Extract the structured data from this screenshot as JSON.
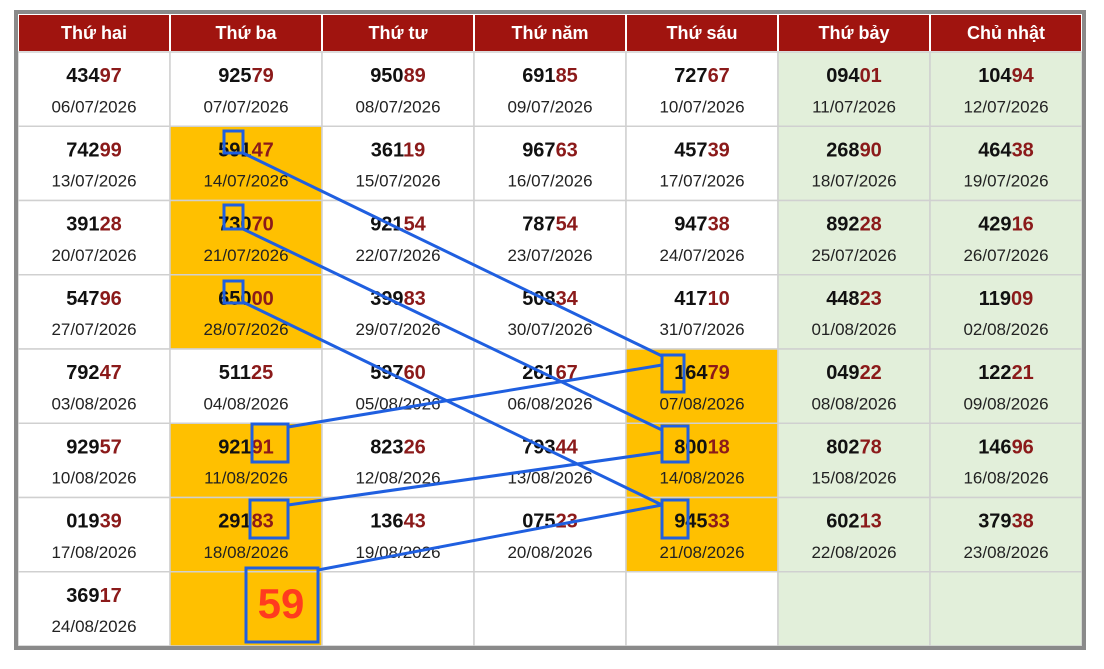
{
  "header": {
    "days": [
      "Thứ hai",
      "Thứ ba",
      "Thứ tư",
      "Thứ năm",
      "Thứ sáu",
      "Thứ bảy",
      "Chủ nhật"
    ]
  },
  "table": {
    "rows": [
      [
        {
          "head": "434",
          "tail": "97",
          "date": "06/07/2026"
        },
        {
          "head": "925",
          "tail": "79",
          "date": "07/07/2026"
        },
        {
          "head": "950",
          "tail": "89",
          "date": "08/07/2026"
        },
        {
          "head": "691",
          "tail": "85",
          "date": "09/07/2026"
        },
        {
          "head": "727",
          "tail": "67",
          "date": "10/07/2026"
        },
        {
          "head": "094",
          "tail": "01",
          "date": "11/07/2026"
        },
        {
          "head": "104",
          "tail": "94",
          "date": "12/07/2026"
        }
      ],
      [
        {
          "head": "742",
          "tail": "99",
          "date": "13/07/2026"
        },
        {
          "head": "591",
          "tail": "47",
          "date": "14/07/2026"
        },
        {
          "head": "361",
          "tail": "19",
          "date": "15/07/2026"
        },
        {
          "head": "967",
          "tail": "63",
          "date": "16/07/2026"
        },
        {
          "head": "457",
          "tail": "39",
          "date": "17/07/2026"
        },
        {
          "head": "268",
          "tail": "90",
          "date": "18/07/2026"
        },
        {
          "head": "464",
          "tail": "38",
          "date": "19/07/2026"
        }
      ],
      [
        {
          "head": "391",
          "tail": "28",
          "date": "20/07/2026"
        },
        {
          "head": "730",
          "tail": "70",
          "date": "21/07/2026"
        },
        {
          "head": "921",
          "tail": "54",
          "date": "22/07/2026"
        },
        {
          "head": "787",
          "tail": "54",
          "date": "23/07/2026"
        },
        {
          "head": "947",
          "tail": "38",
          "date": "24/07/2026"
        },
        {
          "head": "892",
          "tail": "28",
          "date": "25/07/2026"
        },
        {
          "head": "429",
          "tail": "16",
          "date": "26/07/2026"
        }
      ],
      [
        {
          "head": "547",
          "tail": "96",
          "date": "27/07/2026"
        },
        {
          "head": "650",
          "tail": "00",
          "date": "28/07/2026"
        },
        {
          "head": "399",
          "tail": "83",
          "date": "29/07/2026"
        },
        {
          "head": "508",
          "tail": "34",
          "date": "30/07/2026"
        },
        {
          "head": "417",
          "tail": "10",
          "date": "31/07/2026"
        },
        {
          "head": "448",
          "tail": "23",
          "date": "01/08/2026"
        },
        {
          "head": "119",
          "tail": "09",
          "date": "02/08/2026"
        }
      ],
      [
        {
          "head": "792",
          "tail": "47",
          "date": "03/08/2026"
        },
        {
          "head": "511",
          "tail": "25",
          "date": "04/08/2026"
        },
        {
          "head": "597",
          "tail": "60",
          "date": "05/08/2026"
        },
        {
          "head": "261",
          "tail": "67",
          "date": "06/08/2026"
        },
        {
          "head": "164",
          "tail": "79",
          "date": "07/08/2026"
        },
        {
          "head": "049",
          "tail": "22",
          "date": "08/08/2026"
        },
        {
          "head": "122",
          "tail": "21",
          "date": "09/08/2026"
        }
      ],
      [
        {
          "head": "929",
          "tail": "57",
          "date": "10/08/2026"
        },
        {
          "head": "921",
          "tail": "91",
          "date": "11/08/2026"
        },
        {
          "head": "823",
          "tail": "26",
          "date": "12/08/2026"
        },
        {
          "head": "793",
          "tail": "44",
          "date": "13/08/2026"
        },
        {
          "head": "800",
          "tail": "18",
          "date": "14/08/2026"
        },
        {
          "head": "802",
          "tail": "78",
          "date": "15/08/2026"
        },
        {
          "head": "146",
          "tail": "96",
          "date": "16/08/2026"
        }
      ],
      [
        {
          "head": "019",
          "tail": "39",
          "date": "17/08/2026"
        },
        {
          "head": "291",
          "tail": "83",
          "date": "18/08/2026"
        },
        {
          "head": "136",
          "tail": "43",
          "date": "19/08/2026"
        },
        {
          "head": "075",
          "tail": "23",
          "date": "20/08/2026"
        },
        {
          "head": "945",
          "tail": "33",
          "date": "21/08/2026"
        },
        {
          "head": "602",
          "tail": "13",
          "date": "22/08/2026"
        },
        {
          "head": "379",
          "tail": "38",
          "date": "23/08/2026"
        }
      ],
      [
        {
          "head": "369",
          "tail": "17",
          "date": "24/08/2026"
        }
      ]
    ]
  },
  "prediction": {
    "text": "59"
  }
}
